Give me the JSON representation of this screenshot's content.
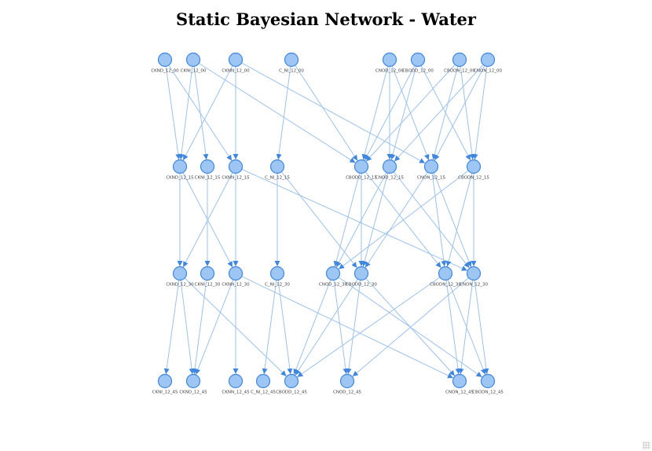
{
  "title": "Static Bayesian Network - Water",
  "colors": {
    "node_fill": "#9dc6f5",
    "node_stroke": "#3f86e0",
    "edge": "#9cc2ee"
  },
  "nodes": [
    {
      "id": "CKND_12_00",
      "label": "CKND_12_00"
    },
    {
      "id": "CKNI_12_00",
      "label": "CKNI_12_00"
    },
    {
      "id": "CKNN_12_00",
      "label": "CKNN_12_00"
    },
    {
      "id": "C_NI_12_00",
      "label": "C_NI_12_00"
    },
    {
      "id": "CNOD_12_00",
      "label": "CNOD_12_00"
    },
    {
      "id": "CBODD_12_00",
      "label": "CBODD_12_00"
    },
    {
      "id": "CBODN_12_00",
      "label": "CBODN_12_00"
    },
    {
      "id": "CNON_12_00",
      "label": "CNON_12_00"
    },
    {
      "id": "CKND_12_15",
      "label": "CKND_12_15"
    },
    {
      "id": "CKNI_12_15",
      "label": "CKNI_12_15"
    },
    {
      "id": "CKNN_12_15",
      "label": "CKNN_12_15"
    },
    {
      "id": "C_NI_12_15",
      "label": "C_NI_12_15"
    },
    {
      "id": "CBODD_12_15",
      "label": "CBODD_12_15"
    },
    {
      "id": "CNOD_12_15",
      "label": "CNOD_12_15"
    },
    {
      "id": "CNON_12_15",
      "label": "CNON_12_15"
    },
    {
      "id": "CBODN_12_15",
      "label": "CBODN_12_15"
    },
    {
      "id": "CKND_12_30",
      "label": "CKND_12_30"
    },
    {
      "id": "CKNI_12_30",
      "label": "CKNI_12_30"
    },
    {
      "id": "CKNN_12_30",
      "label": "CKNN_12_30"
    },
    {
      "id": "C_NI_12_30",
      "label": "C_NI_12_30"
    },
    {
      "id": "CNOD_12_30",
      "label": "CNOD_12_30"
    },
    {
      "id": "CBODD_12_30",
      "label": "CBODD_12_30"
    },
    {
      "id": "CBODN_12_30",
      "label": "CBODN_12_30"
    },
    {
      "id": "CNON_12_30",
      "label": "CNON_12_30"
    },
    {
      "id": "CKNI_12_45",
      "label": "CKNI_12_45"
    },
    {
      "id": "CKND_12_45",
      "label": "CKND_12_45"
    },
    {
      "id": "CKNN_12_45",
      "label": "CKNN_12_45"
    },
    {
      "id": "C_NI_12_45",
      "label": "C_NI_12_45"
    },
    {
      "id": "CBODD_12_45",
      "label": "CBODD_12_45"
    },
    {
      "id": "CNOD_12_45",
      "label": "CNOD_12_45"
    },
    {
      "id": "CNON_12_45",
      "label": "CNON_12_45"
    },
    {
      "id": "CBODN_12_45",
      "label": "CBODN_12_45"
    }
  ],
  "edges": [
    [
      "CKND_12_00",
      "CKND_12_15"
    ],
    [
      "CKND_12_00",
      "CKNN_12_15"
    ],
    [
      "CKNI_12_00",
      "CKND_12_15"
    ],
    [
      "CKNI_12_00",
      "CKNI_12_15"
    ],
    [
      "CKNI_12_00",
      "CBODD_12_15"
    ],
    [
      "CKNN_12_00",
      "CKND_12_15"
    ],
    [
      "CKNN_12_00",
      "CKNN_12_15"
    ],
    [
      "CKNN_12_00",
      "CNON_12_15"
    ],
    [
      "C_NI_12_00",
      "C_NI_12_15"
    ],
    [
      "C_NI_12_00",
      "CBODD_12_15"
    ],
    [
      "CNOD_12_00",
      "CBODD_12_15"
    ],
    [
      "CNOD_12_00",
      "CNOD_12_15"
    ],
    [
      "CNOD_12_00",
      "CNON_12_15"
    ],
    [
      "CBODD_12_00",
      "CBODD_12_15"
    ],
    [
      "CBODD_12_00",
      "CNOD_12_15"
    ],
    [
      "CBODD_12_00",
      "CBODN_12_15"
    ],
    [
      "CBODN_12_00",
      "CBODD_12_15"
    ],
    [
      "CBODN_12_00",
      "CNON_12_15"
    ],
    [
      "CBODN_12_00",
      "CBODN_12_15"
    ],
    [
      "CNON_12_00",
      "CNOD_12_15"
    ],
    [
      "CNON_12_00",
      "CNON_12_15"
    ],
    [
      "CNON_12_00",
      "CBODN_12_15"
    ],
    [
      "CKND_12_15",
      "CKND_12_30"
    ],
    [
      "CKND_12_15",
      "CKNN_12_30"
    ],
    [
      "CKNI_12_15",
      "CKNI_12_30"
    ],
    [
      "CKNN_12_15",
      "CKND_12_30"
    ],
    [
      "CKNN_12_15",
      "CKNN_12_30"
    ],
    [
      "CKNN_12_15",
      "CNON_12_30"
    ],
    [
      "C_NI_12_15",
      "C_NI_12_30"
    ],
    [
      "C_NI_12_15",
      "CBODD_12_30"
    ],
    [
      "CBODD_12_15",
      "CNOD_12_30"
    ],
    [
      "CBODD_12_15",
      "CBODD_12_30"
    ],
    [
      "CBODD_12_15",
      "CBODN_12_30"
    ],
    [
      "CNOD_12_15",
      "CNOD_12_30"
    ],
    [
      "CNOD_12_15",
      "CBODD_12_30"
    ],
    [
      "CNOD_12_15",
      "CNON_12_30"
    ],
    [
      "CNON_12_15",
      "CBODD_12_30"
    ],
    [
      "CNON_12_15",
      "CBODN_12_30"
    ],
    [
      "CNON_12_15",
      "CNON_12_30"
    ],
    [
      "CBODN_12_15",
      "CNOD_12_30"
    ],
    [
      "CBODN_12_15",
      "CBODN_12_30"
    ],
    [
      "CBODN_12_15",
      "CNON_12_30"
    ],
    [
      "CKND_12_30",
      "CKNI_12_45"
    ],
    [
      "CKND_12_30",
      "CKND_12_45"
    ],
    [
      "CKND_12_30",
      "CBODD_12_45"
    ],
    [
      "CKNI_12_30",
      "CKND_12_45"
    ],
    [
      "CKNN_12_30",
      "CKND_12_45"
    ],
    [
      "CKNN_12_30",
      "CKNN_12_45"
    ],
    [
      "CKNN_12_30",
      "CNON_12_45"
    ],
    [
      "C_NI_12_30",
      "C_NI_12_45"
    ],
    [
      "C_NI_12_30",
      "CBODD_12_45"
    ],
    [
      "CNOD_12_30",
      "CBODD_12_45"
    ],
    [
      "CNOD_12_30",
      "CNOD_12_45"
    ],
    [
      "CNOD_12_30",
      "CBODN_12_45"
    ],
    [
      "CBODD_12_30",
      "CBODD_12_45"
    ],
    [
      "CBODD_12_30",
      "CNOD_12_45"
    ],
    [
      "CBODD_12_30",
      "CNON_12_45"
    ],
    [
      "CBODN_12_30",
      "CBODD_12_45"
    ],
    [
      "CBODN_12_30",
      "CNON_12_45"
    ],
    [
      "CBODN_12_30",
      "CBODN_12_45"
    ],
    [
      "CNON_12_30",
      "CNOD_12_45"
    ],
    [
      "CNON_12_30",
      "CNON_12_45"
    ],
    [
      "CNON_12_30",
      "CBODN_12_45"
    ]
  ]
}
